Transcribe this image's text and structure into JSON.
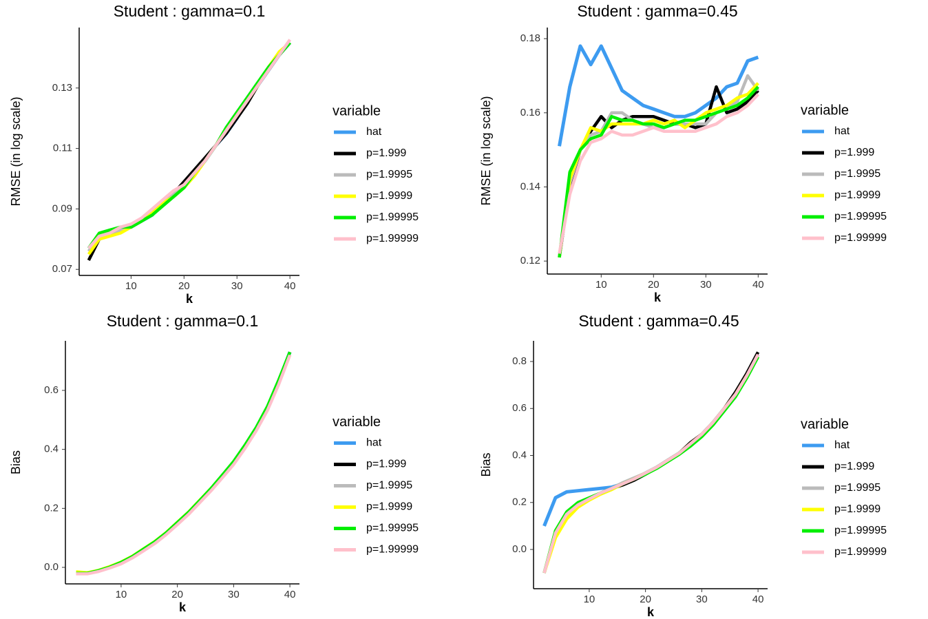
{
  "chart_data": [
    {
      "type": "line",
      "title": "Student : gamma=0.1",
      "xlabel": "k",
      "ylabel": "RMSE (in log scale)",
      "legend_title": "variable",
      "legend": "right",
      "x": [
        2,
        4,
        6,
        8,
        10,
        12,
        14,
        16,
        18,
        20,
        22,
        24,
        26,
        28,
        30,
        32,
        34,
        36,
        38,
        40
      ],
      "xlim": [
        0.2,
        41.8
      ],
      "xticks": [
        10,
        20,
        30,
        40
      ],
      "ylim": [
        0.068,
        0.15
      ],
      "yticks": [
        0.07,
        0.09,
        0.11,
        0.13
      ],
      "series": [
        {
          "name": "hat",
          "color": "#3d9bf0",
          "values": [
            0.077,
            0.081,
            0.082,
            0.083,
            0.084,
            0.086,
            0.088,
            0.092,
            0.095,
            0.098,
            0.102,
            0.106,
            0.111,
            0.115,
            0.12,
            0.126,
            0.131,
            0.136,
            0.141,
            0.145
          ]
        },
        {
          "name": "p=1.999",
          "color": "#000000",
          "values": [
            0.073,
            0.08,
            0.082,
            0.083,
            0.084,
            0.086,
            0.089,
            0.092,
            0.095,
            0.099,
            0.103,
            0.107,
            0.111,
            0.115,
            0.12,
            0.125,
            0.131,
            0.136,
            0.141,
            0.145
          ]
        },
        {
          "name": "p=1.9995",
          "color": "#bbbbbb",
          "values": [
            0.076,
            0.081,
            0.082,
            0.083,
            0.084,
            0.086,
            0.089,
            0.092,
            0.095,
            0.098,
            0.102,
            0.106,
            0.111,
            0.116,
            0.121,
            0.126,
            0.131,
            0.136,
            0.141,
            0.145
          ]
        },
        {
          "name": "p=1.9999",
          "color": "#ffff00",
          "values": [
            0.075,
            0.08,
            0.081,
            0.082,
            0.084,
            0.086,
            0.089,
            0.092,
            0.094,
            0.097,
            0.101,
            0.106,
            0.111,
            0.116,
            0.121,
            0.126,
            0.131,
            0.137,
            0.142,
            0.145
          ]
        },
        {
          "name": "p=1.99995",
          "color": "#00ee00",
          "values": [
            0.077,
            0.082,
            0.083,
            0.084,
            0.084,
            0.086,
            0.088,
            0.091,
            0.094,
            0.097,
            0.102,
            0.106,
            0.111,
            0.117,
            0.122,
            0.127,
            0.132,
            0.137,
            0.141,
            0.145
          ]
        },
        {
          "name": "p=1.99999",
          "color": "#ffc0cb",
          "values": [
            0.077,
            0.081,
            0.082,
            0.084,
            0.085,
            0.087,
            0.09,
            0.093,
            0.096,
            0.098,
            0.102,
            0.106,
            0.111,
            0.116,
            0.121,
            0.126,
            0.131,
            0.136,
            0.141,
            0.146
          ]
        }
      ]
    },
    {
      "type": "line",
      "title": "Student : gamma=0.45",
      "xlabel": "k",
      "ylabel": "RMSE (in log scale)",
      "legend_title": "variable",
      "legend": "right",
      "x": [
        2,
        4,
        6,
        8,
        10,
        12,
        14,
        16,
        18,
        20,
        22,
        24,
        26,
        28,
        30,
        32,
        34,
        36,
        38,
        40
      ],
      "xlim": [
        -0.3,
        41.8
      ],
      "xticks": [
        10,
        20,
        30,
        40
      ],
      "ylim": [
        0.1165,
        0.183
      ],
      "yticks": [
        0.12,
        0.14,
        0.16,
        0.18
      ],
      "series": [
        {
          "name": "hat",
          "color": "#3d9bf0",
          "values": [
            0.151,
            0.167,
            0.178,
            0.173,
            0.178,
            0.172,
            0.166,
            0.164,
            0.162,
            0.161,
            0.16,
            0.159,
            0.159,
            0.16,
            0.162,
            0.164,
            0.167,
            0.168,
            0.174,
            0.175
          ]
        },
        {
          "name": "p=1.999",
          "color": "#000000",
          "values": [
            0.121,
            0.14,
            0.15,
            0.155,
            0.159,
            0.156,
            0.158,
            0.159,
            0.159,
            0.159,
            0.158,
            0.157,
            0.157,
            0.156,
            0.157,
            0.167,
            0.16,
            0.161,
            0.163,
            0.166
          ]
        },
        {
          "name": "p=1.9995",
          "color": "#bbbbbb",
          "values": [
            0.121,
            0.141,
            0.15,
            0.154,
            0.155,
            0.16,
            0.16,
            0.158,
            0.157,
            0.156,
            0.156,
            0.157,
            0.157,
            0.157,
            0.157,
            0.16,
            0.161,
            0.163,
            0.17,
            0.166
          ]
        },
        {
          "name": "p=1.9999",
          "color": "#ffff00",
          "values": [
            0.121,
            0.142,
            0.15,
            0.156,
            0.155,
            0.157,
            0.157,
            0.157,
            0.157,
            0.158,
            0.157,
            0.158,
            0.156,
            0.158,
            0.16,
            0.161,
            0.162,
            0.164,
            0.165,
            0.168
          ]
        },
        {
          "name": "p=1.99995",
          "color": "#00ee00",
          "values": [
            0.121,
            0.144,
            0.15,
            0.153,
            0.154,
            0.159,
            0.158,
            0.158,
            0.157,
            0.157,
            0.156,
            0.157,
            0.158,
            0.158,
            0.159,
            0.16,
            0.161,
            0.162,
            0.164,
            0.167
          ]
        },
        {
          "name": "p=1.99999",
          "color": "#ffc0cb",
          "values": [
            0.122,
            0.138,
            0.147,
            0.152,
            0.153,
            0.155,
            0.154,
            0.154,
            0.155,
            0.156,
            0.155,
            0.155,
            0.155,
            0.155,
            0.156,
            0.157,
            0.159,
            0.16,
            0.162,
            0.165
          ]
        }
      ]
    },
    {
      "type": "line",
      "title": "Student : gamma=0.1",
      "xlabel": "k",
      "ylabel": "Bias",
      "legend_title": "variable",
      "legend": "right",
      "x": [
        2,
        4,
        6,
        8,
        10,
        12,
        14,
        16,
        18,
        20,
        22,
        24,
        26,
        28,
        30,
        32,
        34,
        36,
        38,
        40
      ],
      "xlim": [
        0.1,
        41.7
      ],
      "xticks": [
        10,
        20,
        30,
        40
      ],
      "ylim": [
        -0.056,
        0.768
      ],
      "yticks": [
        {
          "value": 0,
          "label": "0.0"
        },
        0.2,
        0.4,
        0.6
      ],
      "series": [
        {
          "name": "hat",
          "color": "#3d9bf0",
          "values": [
            -0.02,
            -0.02,
            -0.012,
            0.0,
            0.015,
            0.035,
            0.06,
            0.085,
            0.115,
            0.15,
            0.185,
            0.225,
            0.265,
            0.31,
            0.355,
            0.41,
            0.47,
            0.54,
            0.63,
            0.73
          ]
        },
        {
          "name": "p=1.999",
          "color": "#000000",
          "values": [
            -0.02,
            -0.02,
            -0.012,
            0.0,
            0.015,
            0.035,
            0.06,
            0.085,
            0.115,
            0.15,
            0.185,
            0.225,
            0.265,
            0.31,
            0.355,
            0.41,
            0.47,
            0.54,
            0.63,
            0.73
          ]
        },
        {
          "name": "p=1.9995",
          "color": "#bbbbbb",
          "values": [
            -0.02,
            -0.021,
            -0.013,
            0.0,
            0.015,
            0.035,
            0.059,
            0.085,
            0.115,
            0.149,
            0.184,
            0.224,
            0.264,
            0.309,
            0.354,
            0.409,
            0.469,
            0.539,
            0.63,
            0.73
          ]
        },
        {
          "name": "p=1.9999",
          "color": "#ffff00",
          "values": [
            -0.015,
            -0.018,
            -0.01,
            0.003,
            0.018,
            0.038,
            0.063,
            0.088,
            0.118,
            0.153,
            0.188,
            0.228,
            0.268,
            0.312,
            0.357,
            0.41,
            0.47,
            0.54,
            0.625,
            0.72
          ]
        },
        {
          "name": "p=1.99995",
          "color": "#00ee00",
          "values": [
            -0.02,
            -0.02,
            -0.011,
            0.001,
            0.017,
            0.037,
            0.062,
            0.087,
            0.117,
            0.152,
            0.187,
            0.227,
            0.268,
            0.313,
            0.359,
            0.414,
            0.474,
            0.545,
            0.635,
            0.73
          ]
        },
        {
          "name": "p=1.99999",
          "color": "#ffc0cb",
          "values": [
            -0.022,
            -0.022,
            -0.014,
            -0.002,
            0.012,
            0.032,
            0.056,
            0.081,
            0.111,
            0.145,
            0.18,
            0.22,
            0.26,
            0.304,
            0.349,
            0.403,
            0.463,
            0.532,
            0.62,
            0.72
          ]
        }
      ]
    },
    {
      "type": "line",
      "title": "Student : gamma=0.45",
      "xlabel": "k",
      "ylabel": "Bias",
      "legend_title": "variable",
      "legend": "right",
      "x": [
        2,
        4,
        6,
        8,
        10,
        12,
        14,
        16,
        18,
        20,
        22,
        24,
        26,
        28,
        30,
        32,
        34,
        36,
        38,
        40
      ],
      "xlim": [
        0.1,
        41.7
      ],
      "xticks": [
        10,
        20,
        30,
        40
      ],
      "ylim": [
        -0.167,
        0.888
      ],
      "yticks": [
        {
          "value": 0,
          "label": "0.0"
        },
        0.2,
        0.4,
        0.6,
        0.8
      ],
      "series": [
        {
          "name": "hat",
          "color": "#3d9bf0",
          "values": [
            0.1,
            0.22,
            0.245,
            0.25,
            0.255,
            0.26,
            0.265,
            0.28,
            0.3,
            0.325,
            0.35,
            0.38,
            0.41,
            0.45,
            0.49,
            0.54,
            0.6,
            0.66,
            0.74,
            0.83
          ]
        },
        {
          "name": "p=1.999",
          "color": "#000000",
          "values": [
            -0.1,
            0.07,
            0.15,
            0.19,
            0.215,
            0.24,
            0.26,
            0.275,
            0.295,
            0.32,
            0.35,
            0.38,
            0.41,
            0.455,
            0.49,
            0.54,
            0.6,
            0.67,
            0.75,
            0.84
          ]
        },
        {
          "name": "p=1.9995",
          "color": "#bbbbbb",
          "values": [
            -0.1,
            0.07,
            0.15,
            0.19,
            0.215,
            0.24,
            0.26,
            0.285,
            0.305,
            0.325,
            0.35,
            0.38,
            0.41,
            0.45,
            0.49,
            0.54,
            0.6,
            0.66,
            0.74,
            0.83
          ]
        },
        {
          "name": "p=1.9999",
          "color": "#ffff00",
          "values": [
            -0.1,
            0.05,
            0.13,
            0.18,
            0.21,
            0.235,
            0.255,
            0.28,
            0.3,
            0.325,
            0.35,
            0.38,
            0.41,
            0.45,
            0.49,
            0.54,
            0.6,
            0.66,
            0.74,
            0.82
          ]
        },
        {
          "name": "p=1.99995",
          "color": "#00ee00",
          "values": [
            -0.1,
            0.08,
            0.16,
            0.2,
            0.22,
            0.24,
            0.26,
            0.28,
            0.3,
            0.32,
            0.345,
            0.375,
            0.405,
            0.44,
            0.48,
            0.53,
            0.59,
            0.65,
            0.73,
            0.82
          ]
        },
        {
          "name": "p=1.99999",
          "color": "#ffc0cb",
          "values": [
            -0.1,
            0.07,
            0.15,
            0.19,
            0.215,
            0.24,
            0.26,
            0.28,
            0.3,
            0.325,
            0.35,
            0.38,
            0.41,
            0.45,
            0.49,
            0.54,
            0.6,
            0.66,
            0.74,
            0.83
          ]
        }
      ]
    }
  ]
}
